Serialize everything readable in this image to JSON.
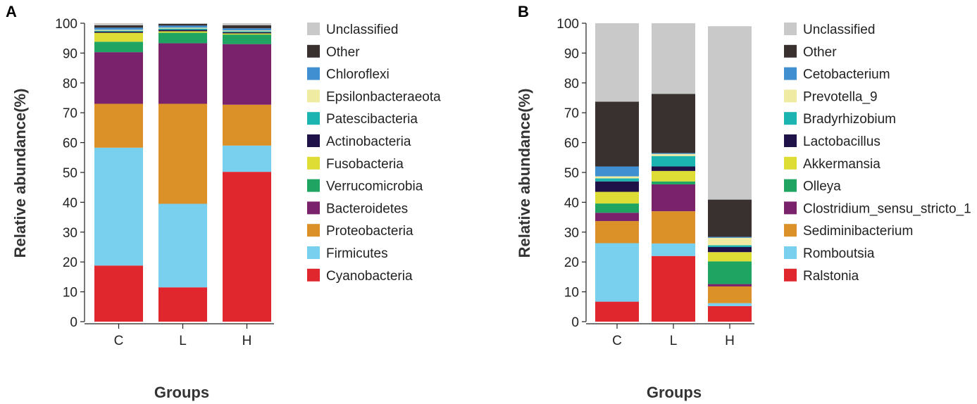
{
  "chart_data": [
    {
      "type": "bar",
      "stacked": true,
      "panel_label": "A",
      "xlabel": "Groups",
      "ylabel": "Relative abundance(%)",
      "ylim": [
        0,
        100
      ],
      "yticks": [
        "0",
        "10",
        "20",
        "30",
        "40",
        "50",
        "60",
        "70",
        "80",
        "90",
        "100"
      ],
      "categories": [
        "C",
        "L",
        "H"
      ],
      "series": [
        {
          "name": "Cyanobacteria",
          "color": "#e0272e",
          "values": [
            18.8,
            11.5,
            50.2
          ]
        },
        {
          "name": "Firmicutes",
          "color": "#79cfee",
          "values": [
            39.5,
            28.0,
            8.8
          ]
        },
        {
          "name": "Proteobacteria",
          "color": "#dc9128",
          "values": [
            14.7,
            33.5,
            13.7
          ]
        },
        {
          "name": "Bacteroidetes",
          "color": "#7a236c",
          "values": [
            17.3,
            20.3,
            20.3
          ]
        },
        {
          "name": "Verrucomicrobia",
          "color": "#1fa461",
          "values": [
            3.5,
            3.5,
            3.2
          ]
        },
        {
          "name": "Fusobacteria",
          "color": "#dddd35",
          "values": [
            3.0,
            0.5,
            0.4
          ]
        },
        {
          "name": "Actinobacteria",
          "color": "#1f1249",
          "values": [
            0.4,
            0.5,
            0.4
          ]
        },
        {
          "name": "Patescibacteria",
          "color": "#1cb4b0",
          "values": [
            0.3,
            0.4,
            0.3
          ]
        },
        {
          "name": "Epsilonbacteraeota",
          "color": "#f0eba2",
          "values": [
            0.3,
            0.3,
            0.3
          ]
        },
        {
          "name": "Chloroflexi",
          "color": "#3f8fd1",
          "values": [
            0.7,
            0.7,
            0.7
          ]
        },
        {
          "name": "Other",
          "color": "#393030",
          "values": [
            0.8,
            0.6,
            1.0
          ]
        },
        {
          "name": "Unclassified",
          "color": "#c9c9c9",
          "values": [
            0.7,
            0.2,
            0.7
          ]
        }
      ]
    },
    {
      "type": "bar",
      "stacked": true,
      "panel_label": "B",
      "xlabel": "Groups",
      "ylabel": "Relative abundance(%)",
      "ylim": [
        0,
        100
      ],
      "yticks": [
        "0",
        "10",
        "20",
        "30",
        "40",
        "50",
        "60",
        "70",
        "80",
        "90",
        "100"
      ],
      "categories": [
        "C",
        "L",
        "H"
      ],
      "series": [
        {
          "name": "Ralstonia",
          "color": "#e0272e",
          "values": [
            6.7,
            22.0,
            5.2
          ]
        },
        {
          "name": "Romboutsia",
          "color": "#79cfee",
          "values": [
            19.6,
            4.2,
            1.0
          ]
        },
        {
          "name": "Sediminibacterium",
          "color": "#dc9128",
          "values": [
            7.4,
            10.8,
            5.6
          ]
        },
        {
          "name": "Clostridium_sensu_stricto_1",
          "color": "#7a236c",
          "values": [
            2.8,
            9.0,
            0.8
          ]
        },
        {
          "name": "Olleya",
          "color": "#1fa461",
          "values": [
            3.1,
            1.0,
            7.6
          ]
        },
        {
          "name": "Akkermansia",
          "color": "#dddd35",
          "values": [
            3.9,
            3.5,
            3.1
          ]
        },
        {
          "name": "Lactobacillus",
          "color": "#1f1249",
          "values": [
            3.5,
            1.5,
            1.7
          ]
        },
        {
          "name": "Bradyrhizobium",
          "color": "#1cb4b0",
          "values": [
            1.0,
            3.5,
            0.6
          ]
        },
        {
          "name": "Prevotella_9",
          "color": "#f0eba2",
          "values": [
            0.7,
            0.7,
            2.5
          ]
        },
        {
          "name": "Cetobacterium",
          "color": "#3f8fd1",
          "values": [
            3.3,
            0.3,
            0.3
          ]
        },
        {
          "name": "Other",
          "color": "#393030",
          "values": [
            21.7,
            19.8,
            12.5
          ]
        },
        {
          "name": "Unclassified",
          "color": "#c9c9c9",
          "values": [
            26.3,
            23.7,
            58.1
          ]
        }
      ]
    }
  ]
}
